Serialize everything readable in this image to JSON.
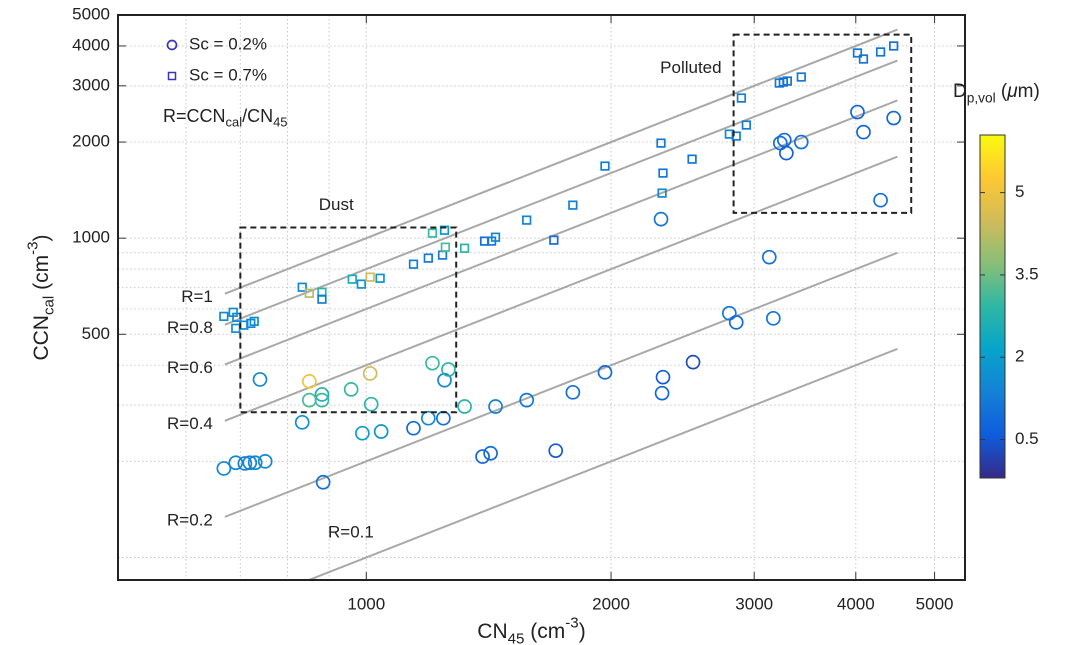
{
  "chart_data": {
    "type": "scatter",
    "xscale": "log",
    "yscale": "log",
    "xlim": [
      495,
      5450
    ],
    "ylim": [
      85,
      5000
    ],
    "xticks": [
      1000,
      2000,
      3000,
      4000,
      5000
    ],
    "yticks": [
      500,
      1000,
      2000,
      3000,
      4000,
      5000
    ],
    "x_minor_grid": [
      600,
      700,
      800,
      900
    ],
    "y_minor_grid": [
      100,
      200,
      300,
      400,
      600,
      700,
      800,
      900
    ],
    "grid": true,
    "x_label": [
      {
        "text": "CN"
      },
      {
        "text": "45",
        "style": "sub"
      },
      {
        "text": " (cm"
      },
      {
        "text": "-3",
        "style": "sup"
      },
      {
        "text": ")"
      }
    ],
    "y_label": [
      {
        "text": "CCN"
      },
      {
        "text": "cal",
        "style": "sub"
      },
      {
        "text": " (cm"
      },
      {
        "text": "-3",
        "style": "sup"
      },
      {
        "text": ")"
      }
    ],
    "legend": {
      "position": "upper left"
    },
    "series": [
      {
        "name": "Sc = 0.2%",
        "marker": "circle",
        "legend_color": "#3a33c2",
        "x": [
          668,
          691,
          709,
          719,
          730,
          751,
          740,
          834,
          851,
          882,
          882,
          851,
          885,
          958,
          989,
          1011,
          1014,
          1043,
          1143,
          1192,
          1244,
          1206,
          1248,
          1262,
          1321,
          1390,
          1422,
          1442,
          1575,
          1710,
          1795,
          1966,
          2304,
          2317,
          2311,
          2523,
          2796,
          2851,
          3131,
          3167,
          3230,
          3267,
          3286,
          3428,
          4019,
          4088,
          4291,
          4453
        ],
        "y": [
          190,
          198,
          197,
          198,
          198,
          200,
          361,
          265,
          356,
          324,
          311,
          311,
          172,
          336,
          245,
          377,
          302,
          248,
          254,
          273,
          273,
          406,
          359,
          388,
          297,
          207,
          212,
          297,
          311,
          216,
          329,
          380,
          1147,
          367,
          327,
          409,
          582,
          545,
          872,
          561,
          1985,
          2029,
          1847,
          2000,
          2483,
          2149,
          1315,
          2378
        ],
        "dp": [
          1.5,
          1.5,
          1.3,
          1.4,
          1.4,
          1.5,
          1.5,
          1.6,
          5.0,
          2.6,
          3.0,
          3.2,
          1.0,
          3.0,
          2.0,
          4.5,
          2.8,
          1.8,
          0.9,
          1.5,
          1.0,
          3.0,
          1.5,
          2.8,
          2.8,
          0.7,
          0.9,
          1.3,
          1.1,
          0.5,
          1.0,
          0.9,
          1.1,
          0.6,
          0.8,
          0.3,
          1.2,
          0.9,
          1.0,
          1.1,
          1.0,
          0.9,
          0.7,
          1.0,
          0.8,
          0.8,
          1.0,
          0.8
        ]
      },
      {
        "name": "Sc = 0.7%",
        "marker": "square",
        "legend_color": "#3a33c2",
        "x": [
          668,
          691,
          707,
          721,
          728,
          686,
          693,
          834,
          851,
          882,
          882,
          961,
          986,
          1011,
          1040,
          1143,
          1192,
          1241,
          1251,
          1206,
          1248,
          1321,
          1398,
          1426,
          1442,
          1575,
          1701,
          1795,
          1966,
          2304,
          2317,
          2311,
          2516,
          2796,
          2851,
          2893,
          2934,
          3221,
          3258,
          3295,
          3428,
          4019,
          4088,
          4291,
          4453
        ],
        "y": [
          569,
          522,
          534,
          541,
          549,
          586,
          565,
          702,
          672,
          677,
          644,
          744,
          718,
          755,
          749,
          829,
          866,
          885,
          937,
          1037,
          1059,
          930,
          979,
          979,
          1007,
          1139,
          986,
          1269,
          1682,
          1985,
          1599,
          1384,
          1768,
          2118,
          2088,
          2747,
          2261,
          3061,
          3083,
          3106,
          3197,
          3802,
          3640,
          3830,
          3999
        ],
        "dp": [
          1.6,
          1.7,
          1.6,
          1.5,
          1.6,
          1.6,
          1.5,
          1.5,
          4.2,
          2.8,
          1.3,
          2.5,
          1.8,
          4.5,
          1.8,
          1.3,
          1.2,
          1.2,
          3.2,
          3.0,
          1.8,
          2.8,
          1.0,
          1.2,
          1.5,
          1.4,
          0.9,
          1.3,
          1.3,
          1.2,
          1.2,
          1.5,
          1.1,
          1.5,
          1.3,
          1.3,
          1.3,
          1.2,
          1.0,
          1.1,
          1.2,
          1.1,
          1.1,
          1.1,
          1.0
        ]
      }
    ],
    "colorbar": {
      "colormap": "parula",
      "clim": [
        -0.2,
        6.05
      ],
      "ticks": [
        0.5,
        2,
        3.5,
        5
      ],
      "label": [
        {
          "text": "D"
        },
        {
          "text": "p,vol",
          "style": "sub"
        },
        {
          "text": " ("
        },
        {
          "text": "μ",
          "style": "italic"
        },
        {
          "text": "m)"
        }
      ]
    },
    "annotation": [
      {
        "text": "R=CCN"
      },
      {
        "text": "cal",
        "style": "sub"
      },
      {
        "text": "/CN"
      },
      {
        "text": "45",
        "style": "sub"
      }
    ],
    "reference_lines": [
      {
        "label": "R=1",
        "ratio": 1
      },
      {
        "label": "R=0.8",
        "ratio": 0.8
      },
      {
        "label": "R=0.6",
        "ratio": 0.6
      },
      {
        "label": "R=0.4",
        "ratio": 0.4
      },
      {
        "label": "R=0.2",
        "ratio": 0.2
      },
      {
        "label": "R=0.1",
        "ratio": 0.1
      }
    ],
    "reference_line_xrange": [
      670,
      4500
    ],
    "regions": [
      {
        "label": "Dust",
        "xrange": [
          700,
          1290
        ],
        "yrange": [
          285,
          1080
        ]
      },
      {
        "label": "Polluted",
        "xrange": [
          2830,
          4680
        ],
        "yrange": [
          1200,
          4340
        ]
      }
    ]
  }
}
